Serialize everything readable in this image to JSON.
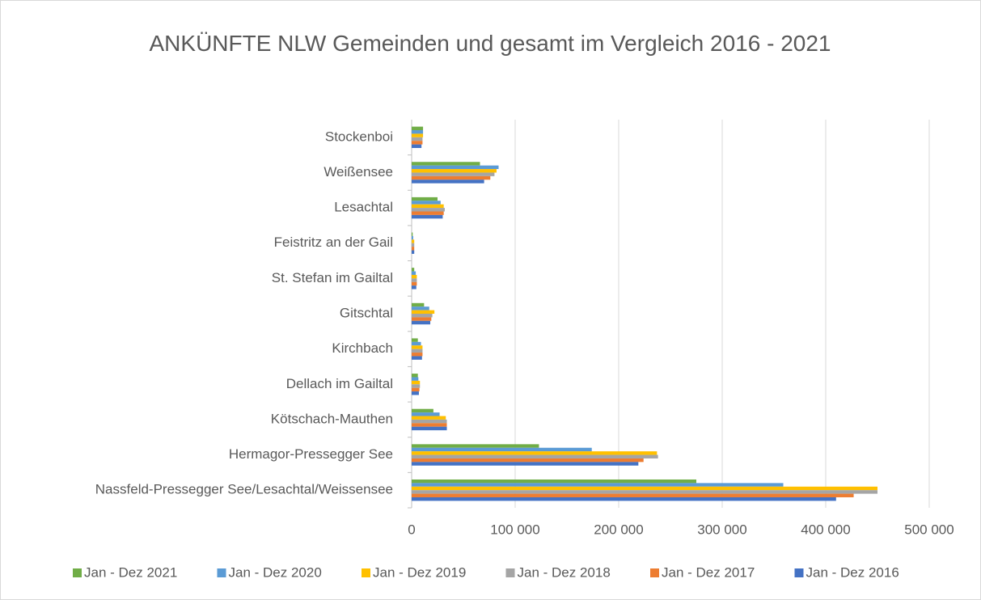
{
  "chart_data": {
    "type": "bar",
    "orientation": "horizontal",
    "title": "ANKÜNFTE NLW Gemeinden und gesamt im Vergleich 2016 - 2021",
    "categories": [
      "Nassfeld-Pressegger See/Lesachtal/Weissensee",
      "Hermagor-Pressegger See",
      "Kötschach-Mauthen",
      "Dellach im Gailtal",
      "Kirchbach",
      "Gitschtal",
      "St. Stefan im Gailtal",
      "Feistritz an der Gail",
      "Lesachtal",
      "Weißensee",
      "Stockenboi"
    ],
    "series": [
      {
        "name": "Jan - Dez 2021",
        "color": "#70ad47",
        "values": [
          275000,
          123000,
          21000,
          6000,
          6000,
          12000,
          2500,
          1000,
          25000,
          66000,
          11000
        ]
      },
      {
        "name": "Jan - Dez 2020",
        "color": "#5b9bd5",
        "values": [
          359000,
          174000,
          27000,
          6500,
          9000,
          17000,
          4000,
          1500,
          28000,
          84000,
          11000
        ]
      },
      {
        "name": "Jan - Dez 2019",
        "color": "#ffc000",
        "values": [
          450000,
          237000,
          33000,
          8000,
          10500,
          22000,
          5000,
          2500,
          31000,
          82000,
          11000
        ]
      },
      {
        "name": "Jan - Dez 2018",
        "color": "#a5a5a5",
        "values": [
          450000,
          238000,
          34000,
          8000,
          10500,
          20000,
          5000,
          2500,
          32000,
          80000,
          10500
        ]
      },
      {
        "name": "Jan - Dez 2017",
        "color": "#ed7d31",
        "values": [
          427000,
          224000,
          34000,
          7500,
          10500,
          19000,
          5000,
          2500,
          31000,
          76000,
          10500
        ]
      },
      {
        "name": "Jan - Dez 2016",
        "color": "#4472c4",
        "values": [
          410000,
          219000,
          34000,
          7000,
          10000,
          18000,
          4500,
          2500,
          30000,
          70000,
          9500
        ]
      }
    ],
    "xlim": [
      0,
      500000
    ],
    "xticks": [
      0,
      {
        "value": 100000,
        "label": "100 000"
      },
      {
        "value": 200000,
        "label": "200 000"
      },
      {
        "value": 300000,
        "label": "300 000"
      },
      {
        "value": 400000,
        "label": "400 000"
      },
      {
        "value": 500000,
        "label": "500 000"
      }
    ],
    "grid": true,
    "legend": "bottom"
  }
}
